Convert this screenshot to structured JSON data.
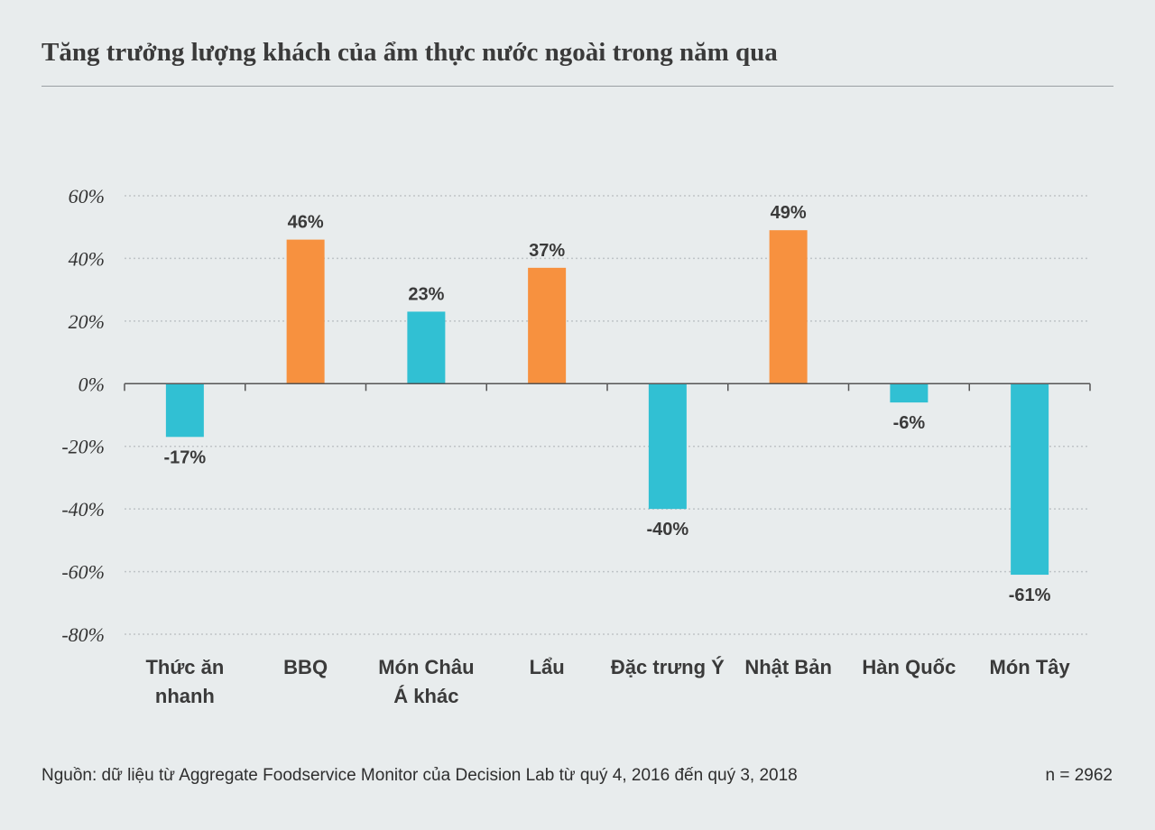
{
  "title": "Tăng trưởng lượng khách của ẩm thực nước ngoài trong năm qua",
  "footer": {
    "source": "Nguồn: dữ liệu từ Aggregate Foodservice Monitor của Decision Lab từ quý 4, 2016 đến quý 3, 2018",
    "n": "n = 2962"
  },
  "colors": {
    "positive": "#f7913f",
    "negative": "#31c0d3",
    "grid": "#bfc4c7",
    "axis": "#555555"
  },
  "chart_data": {
    "type": "bar",
    "categories": [
      [
        "Thức ăn",
        "nhanh"
      ],
      [
        "BBQ"
      ],
      [
        "Món Châu",
        "Á khác"
      ],
      [
        "Lẩu"
      ],
      [
        "Đặc trưng Ý"
      ],
      [
        "Nhật Bản"
      ],
      [
        "Hàn Quốc"
      ],
      [
        "Món Tây"
      ]
    ],
    "values": [
      -17,
      46,
      23,
      37,
      -40,
      49,
      -6,
      -61
    ],
    "value_labels": [
      "-17%",
      "46%",
      "23%",
      "37%",
      "-40%",
      "49%",
      "-6%",
      "-61%"
    ],
    "bar_colors": [
      "#31c0d3",
      "#f7913f",
      "#31c0d3",
      "#f7913f",
      "#31c0d3",
      "#f7913f",
      "#31c0d3",
      "#31c0d3"
    ],
    "ylim": [
      -80,
      60
    ],
    "yticks": [
      60,
      40,
      20,
      0,
      -20,
      -40,
      -60,
      -80
    ],
    "ytick_labels": [
      "60%",
      "40%",
      "20%",
      "0%",
      "-20%",
      "-40%",
      "-60%",
      "-80%"
    ],
    "grid": true,
    "title": "",
    "xlabel": "",
    "ylabel": ""
  }
}
